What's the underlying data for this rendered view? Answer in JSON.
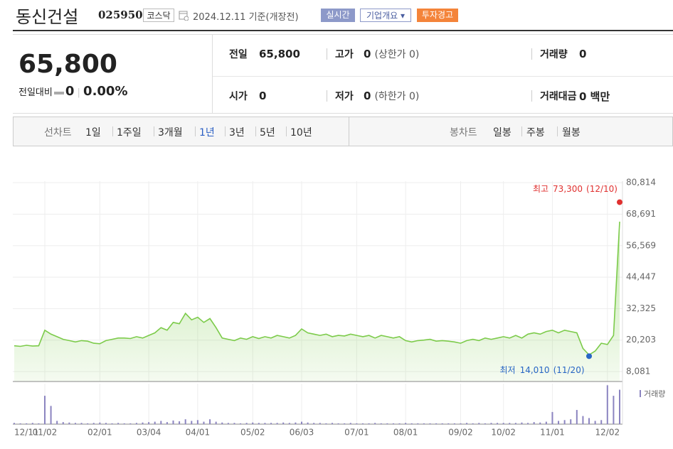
{
  "header": {
    "name": "동신건설",
    "code": "025950",
    "market": "코스닥",
    "date": "2024.12.11",
    "date_note": "기준(개장전)",
    "buttons": [
      "실시간",
      "기업개요",
      "투자경고"
    ]
  },
  "price": {
    "current": "65,800",
    "change_label": "전일대비",
    "change": "0",
    "change_pct": "0.00%"
  },
  "info": [
    {
      "label": "전일",
      "value": "65,800"
    },
    {
      "label": "고가",
      "value": "0",
      "note": "(상한가 0)"
    },
    {
      "label": "거래량",
      "value": "0"
    },
    {
      "label": "시가",
      "value": "0"
    },
    {
      "label": "저가",
      "value": "0",
      "note": "(하한가 0)"
    },
    {
      "label": "거래대금",
      "value": "0 백만"
    }
  ],
  "tabs": {
    "line_label": "선차트",
    "periods": [
      "1일",
      "1주일",
      "3개월",
      "1년",
      "3년",
      "5년",
      "10년"
    ],
    "active_period": 3,
    "candle_label": "봉차트",
    "candles": [
      "일봉",
      "주봉",
      "월봉"
    ]
  },
  "chart_data": {
    "type": "line",
    "color": "#7ccb4a",
    "categories": [
      "12/11",
      null,
      null,
      null,
      null,
      "01/02",
      null,
      null,
      null,
      null,
      null,
      null,
      null,
      null,
      "02/01",
      null,
      null,
      null,
      null,
      null,
      null,
      null,
      "03/04",
      null,
      null,
      null,
      null,
      null,
      null,
      null,
      "04/01",
      null,
      null,
      null,
      null,
      null,
      null,
      null,
      null,
      "05/02",
      null,
      null,
      null,
      null,
      null,
      null,
      null,
      "06/03",
      null,
      null,
      null,
      null,
      null,
      null,
      null,
      null,
      "07/01",
      null,
      null,
      null,
      null,
      null,
      null,
      null,
      "08/01",
      null,
      null,
      null,
      null,
      null,
      null,
      null,
      null,
      "09/02",
      null,
      null,
      null,
      null,
      null,
      null,
      "10/02",
      null,
      null,
      null,
      null,
      null,
      null,
      null,
      "11/01",
      null,
      null,
      null,
      null,
      null,
      null,
      null,
      null,
      "12/02",
      null,
      null
    ],
    "values": [
      18000,
      17800,
      18200,
      17900,
      18000,
      24000,
      22500,
      21500,
      20500,
      20000,
      19500,
      20000,
      19800,
      19000,
      18800,
      20000,
      20500,
      21000,
      21000,
      20800,
      21500,
      21000,
      22000,
      23000,
      25000,
      24000,
      27000,
      26500,
      30500,
      28000,
      29000,
      27000,
      28500,
      25000,
      21000,
      20500,
      20000,
      21000,
      20500,
      21500,
      20800,
      21500,
      21000,
      22000,
      21500,
      21000,
      22000,
      24500,
      23000,
      22500,
      22000,
      22500,
      21500,
      22000,
      21800,
      22500,
      22000,
      21500,
      22000,
      21000,
      22000,
      21500,
      21000,
      21500,
      20000,
      19500,
      20000,
      20200,
      20500,
      19800,
      20000,
      19800,
      19500,
      19000,
      20000,
      20500,
      20000,
      21000,
      20500,
      21000,
      21500,
      21000,
      22000,
      21000,
      22500,
      23000,
      22500,
      23500,
      24000,
      23000,
      24000,
      23500,
      23000,
      17000,
      14500,
      16000,
      19000,
      18500,
      22000,
      65800
    ],
    "ylim": [
      4250,
      81400
    ],
    "yticks": [
      {
        "value": 8081,
        "label": "8,081"
      },
      {
        "value": 20203,
        "label": "20,203"
      },
      {
        "value": 32325,
        "label": "32,325"
      },
      {
        "value": 44447,
        "label": "44,447"
      },
      {
        "value": 56569,
        "label": "56,569"
      },
      {
        "value": 68691,
        "label": "68,691"
      },
      {
        "value": 80814,
        "label": "80,814"
      }
    ],
    "grid": true,
    "high": {
      "label": "최고",
      "value": 73300,
      "value_label": "73,300",
      "date": "(12/10)",
      "color": "#e0302f"
    },
    "low": {
      "label": "최저",
      "value": 14010,
      "value_label": "14,010",
      "date": "(11/20)",
      "color": "#2866c5"
    },
    "volume": {
      "name": "거래량",
      "color": "#8b84c0",
      "ylim": [
        0,
        100
      ],
      "values": [
        3,
        2,
        2,
        3,
        2,
        70,
        45,
        8,
        5,
        4,
        3,
        3,
        2,
        3,
        4,
        3,
        2,
        3,
        2,
        2,
        3,
        4,
        5,
        6,
        8,
        5,
        9,
        7,
        12,
        8,
        10,
        6,
        12,
        6,
        4,
        3,
        3,
        2,
        3,
        4,
        3,
        3,
        3,
        3,
        4,
        3,
        4,
        6,
        4,
        3,
        3,
        2,
        3,
        2,
        2,
        3,
        2,
        2,
        2,
        3,
        2,
        2,
        2,
        2,
        3,
        2,
        2,
        2,
        2,
        2,
        2,
        2,
        2,
        2,
        3,
        2,
        3,
        2,
        3,
        3,
        3,
        3,
        3,
        4,
        3,
        5,
        4,
        6,
        30,
        8,
        10,
        12,
        35,
        20,
        15,
        8,
        10,
        96,
        70,
        85
      ]
    }
  }
}
